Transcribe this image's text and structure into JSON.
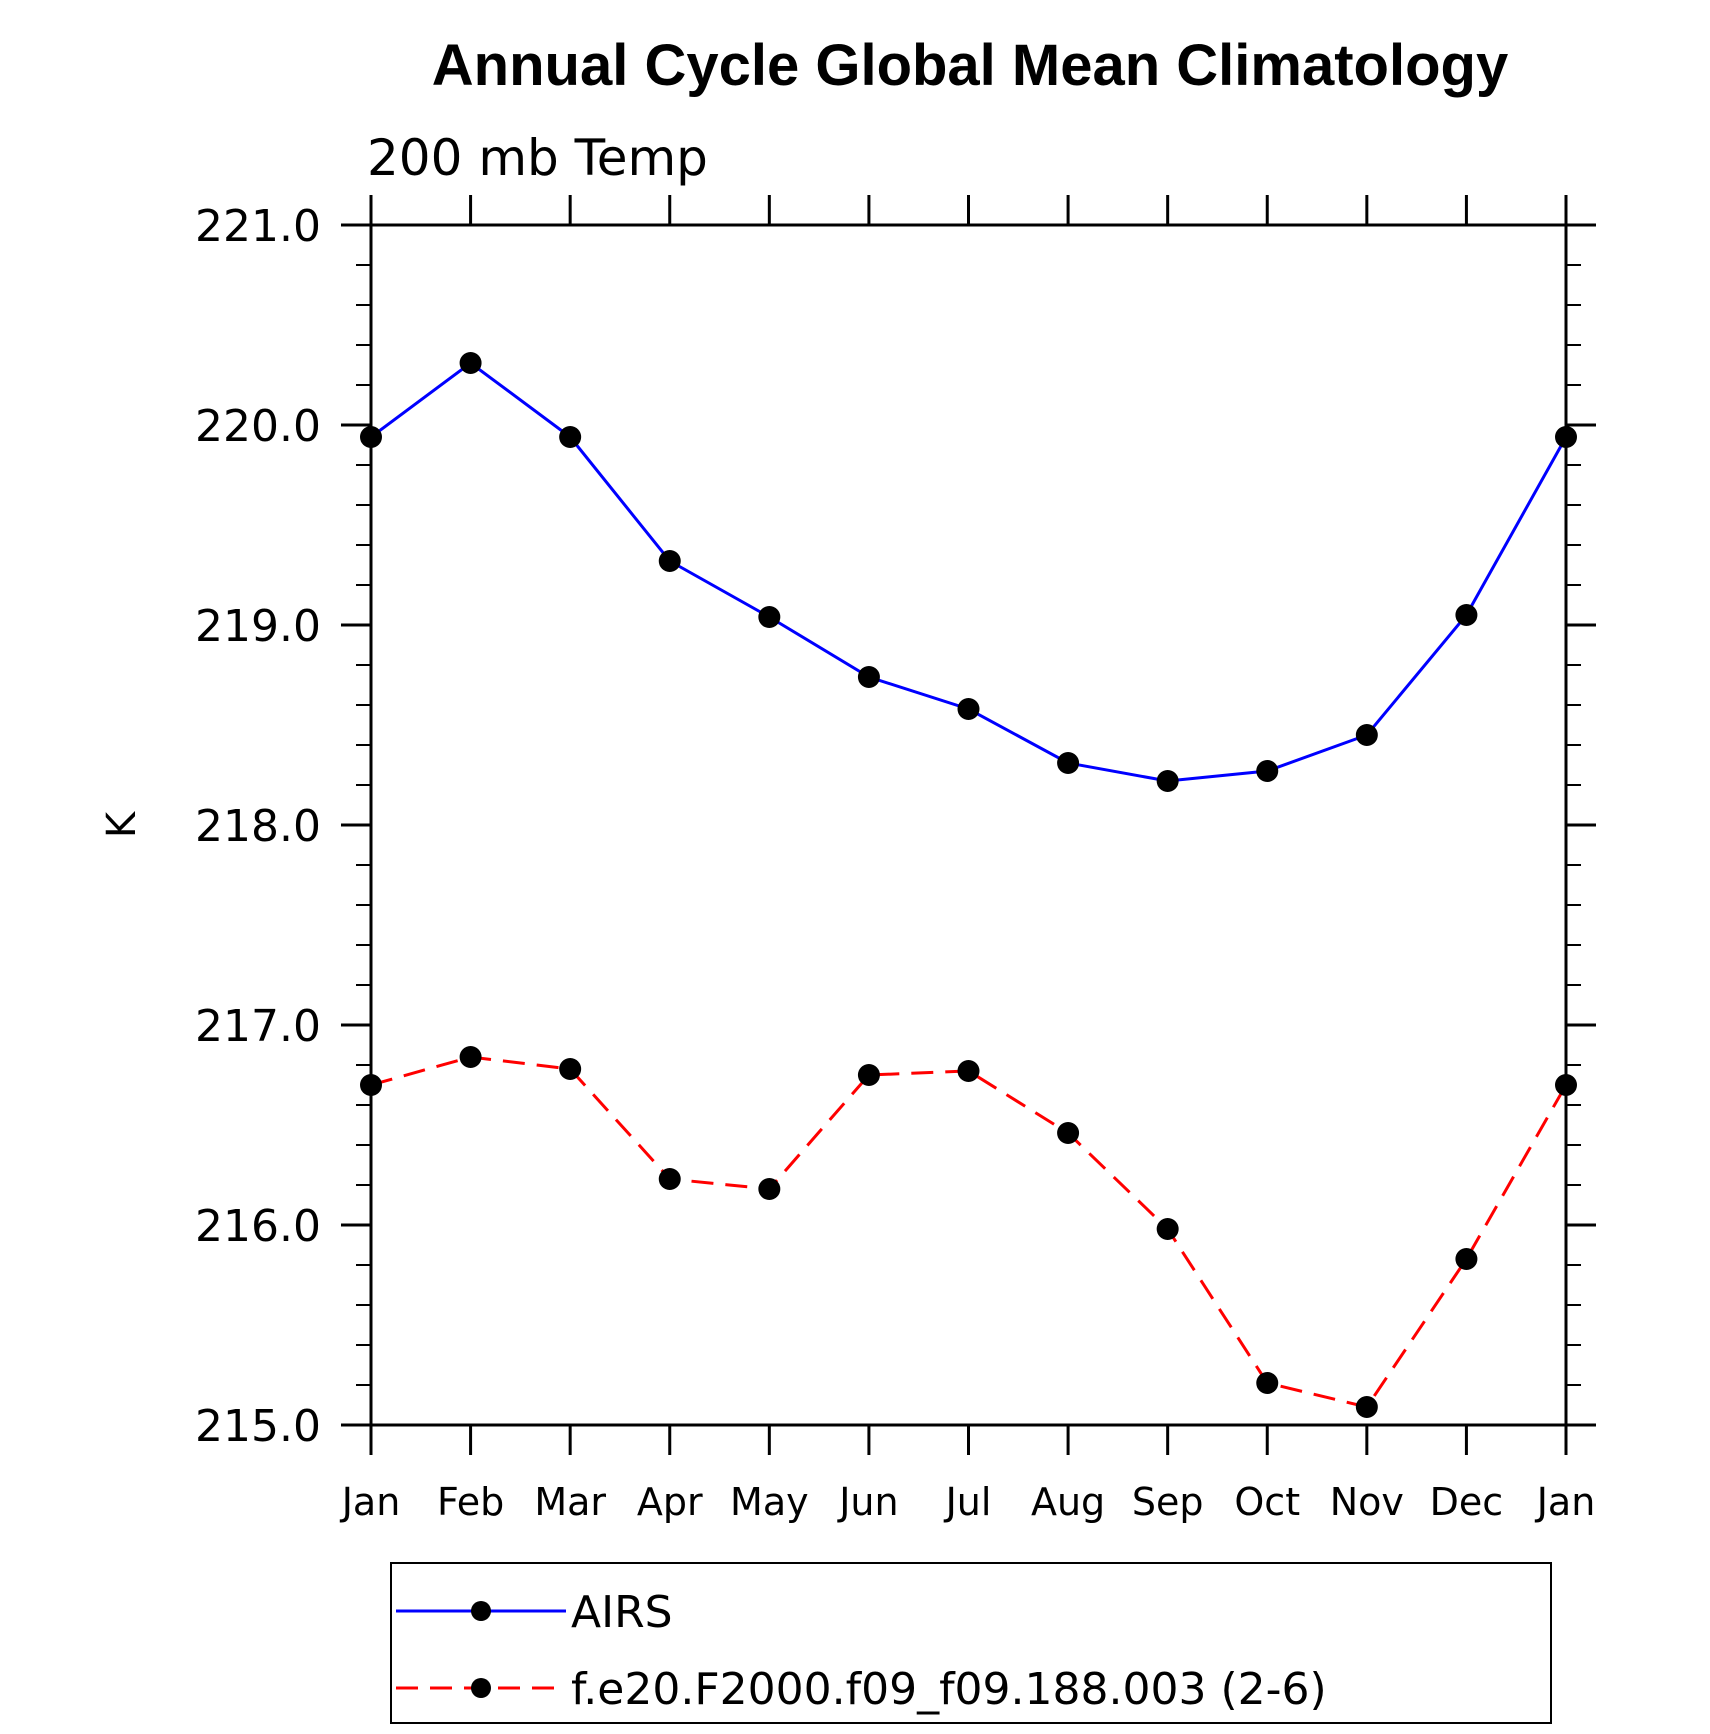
{
  "chart_data": {
    "type": "line",
    "title": "Annual Cycle Global Mean Climatology",
    "subtitle": "200 mb Temp",
    "xlabel": "",
    "ylabel": "K",
    "categories": [
      "Jan",
      "Feb",
      "Mar",
      "Apr",
      "May",
      "Jun",
      "Jul",
      "Aug",
      "Sep",
      "Oct",
      "Nov",
      "Dec",
      "Jan"
    ],
    "ylim": [
      215.0,
      221.0
    ],
    "yticks": [
      "215.0",
      "216.0",
      "217.0",
      "218.0",
      "219.0",
      "220.0",
      "221.0"
    ],
    "grid": false,
    "legend_position": "bottom",
    "series": [
      {
        "name": "AIRS",
        "color": "#0000ff",
        "line_style": "solid",
        "marker": "filled-circle",
        "values": [
          219.94,
          220.31,
          219.94,
          219.32,
          219.04,
          218.74,
          218.58,
          218.31,
          218.22,
          218.27,
          218.45,
          219.05,
          219.94
        ]
      },
      {
        "name": "f.e20.F2000.f09_f09.188.003 (2-6)",
        "color": "#ff0000",
        "line_style": "dashed",
        "marker": "filled-circle",
        "values": [
          216.7,
          216.84,
          216.78,
          216.23,
          216.18,
          216.75,
          216.77,
          216.46,
          215.98,
          215.21,
          215.09,
          215.83,
          216.7
        ]
      }
    ]
  }
}
